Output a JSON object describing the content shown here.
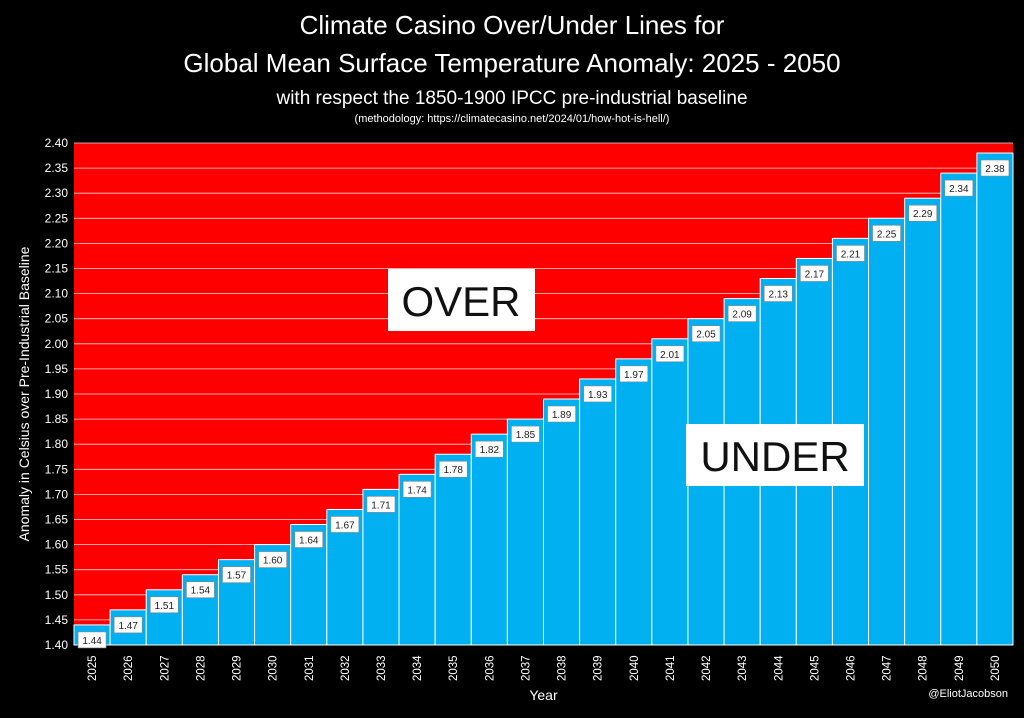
{
  "header": {
    "title_line1": "Climate Casino Over/Under Lines for",
    "title_line2": "Global Mean Surface Temperature Anomaly: 2025 - 2050",
    "subtitle": "with respect the 1850-1900 IPCC pre-industrial baseline",
    "methodology": "(methodology: https://climatecasino.net/2024/01/how-hot-is-hell/)"
  },
  "credit": "@EliotJacobson",
  "colors": {
    "over": "#ff0000",
    "under": "#00b0f0",
    "background": "#000000",
    "grid": "#ffffff"
  },
  "chart_data": {
    "type": "bar",
    "title": "Climate Casino Over/Under Lines for Global Mean Surface Temperature Anomaly: 2025 - 2050",
    "xlabel": "Year",
    "ylabel": "Anomaly in Celsius over Pre-Industrial Baseline",
    "ylim": [
      1.4,
      2.4
    ],
    "ytick_step": 0.05,
    "grid": true,
    "categories": [
      "2025",
      "2026",
      "2027",
      "2028",
      "2029",
      "2030",
      "2031",
      "2032",
      "2033",
      "2034",
      "2035",
      "2036",
      "2037",
      "2038",
      "2039",
      "2040",
      "2041",
      "2042",
      "2043",
      "2044",
      "2045",
      "2046",
      "2047",
      "2048",
      "2049",
      "2050"
    ],
    "values": [
      1.44,
      1.47,
      1.51,
      1.54,
      1.57,
      1.6,
      1.64,
      1.67,
      1.71,
      1.74,
      1.78,
      1.82,
      1.85,
      1.89,
      1.93,
      1.97,
      2.01,
      2.05,
      2.09,
      2.13,
      2.17,
      2.21,
      2.25,
      2.29,
      2.34,
      2.38
    ],
    "annotations": [
      "OVER",
      "UNDER"
    ]
  }
}
